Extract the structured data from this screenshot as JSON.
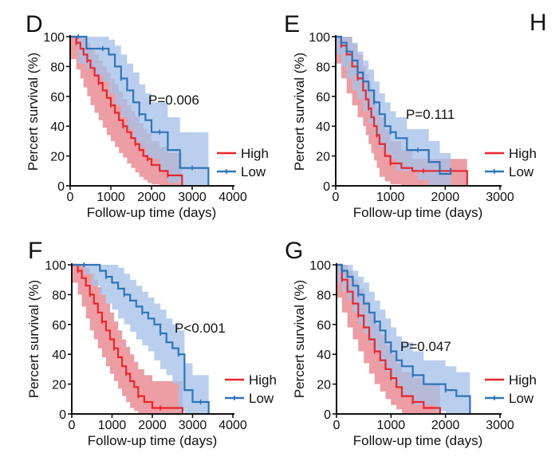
{
  "figure_letters": [
    "H"
  ],
  "chart_data": [
    {
      "type": "line",
      "panel": "D",
      "xlabel": "Follow-up time (days)",
      "ylabel": "Percert survival (%)",
      "xlim": [
        0,
        4000
      ],
      "ylim": [
        0,
        100
      ],
      "xticks": [
        "0",
        "1000",
        "2000",
        "3000",
        "4000"
      ],
      "yticks": [
        "0",
        "20",
        "40",
        "60",
        "80",
        "100"
      ],
      "annotation": "P=0.006",
      "legend_position": "right",
      "series": [
        {
          "name": "High",
          "color": "#e8262b",
          "band_color": "#e8838a",
          "x": [
            0,
            150,
            250,
            330,
            420,
            500,
            600,
            700,
            800,
            900,
            1000,
            1100,
            1200,
            1300,
            1400,
            1500,
            1600,
            1700,
            1800,
            1900,
            2000,
            2200,
            2400,
            2600,
            2750
          ],
          "y": [
            100,
            96,
            92,
            88,
            84,
            79,
            74,
            69,
            64,
            59,
            54,
            49,
            44,
            40,
            36,
            32,
            28,
            24,
            20,
            18,
            14,
            10,
            7,
            7,
            0
          ],
          "lower": [
            100,
            85,
            78,
            72,
            66,
            60,
            54,
            49,
            44,
            39,
            34,
            30,
            26,
            22,
            19,
            15,
            12,
            9,
            6,
            4,
            2,
            1,
            0,
            0,
            0
          ],
          "upper": [
            100,
            100,
            100,
            99,
            96,
            92,
            88,
            84,
            80,
            76,
            72,
            68,
            63,
            58,
            54,
            50,
            46,
            42,
            38,
            35,
            30,
            26,
            22,
            22,
            22
          ]
        },
        {
          "name": "Low",
          "color": "#2d74b8",
          "band_color": "#a6c1e8",
          "x": [
            0,
            200,
            400,
            600,
            800,
            950,
            1100,
            1250,
            1400,
            1550,
            1700,
            1850,
            2000,
            2200,
            2400,
            2700,
            3000,
            3400
          ],
          "y": [
            100,
            100,
            92,
            92,
            92,
            88,
            80,
            72,
            64,
            56,
            48,
            44,
            36,
            36,
            24,
            12,
            12,
            0
          ],
          "lower": [
            100,
            100,
            82,
            78,
            74,
            70,
            62,
            54,
            46,
            38,
            30,
            26,
            20,
            18,
            10,
            2,
            0,
            0
          ],
          "upper": [
            100,
            100,
            100,
            100,
            100,
            98,
            94,
            88,
            82,
            76,
            68,
            62,
            56,
            56,
            46,
            36,
            36,
            36
          ]
        }
      ]
    },
    {
      "type": "line",
      "panel": "E",
      "xlabel": "Follow-up time (days)",
      "ylabel": "Percert survival (%)",
      "xlim": [
        0,
        3000
      ],
      "ylim": [
        0,
        100
      ],
      "xticks": [
        "0",
        "1000",
        "2000",
        "3000"
      ],
      "yticks": [
        "0",
        "20",
        "40",
        "60",
        "80",
        "100"
      ],
      "annotation": "P=0.111",
      "legend_position": "right",
      "series": [
        {
          "name": "High",
          "color": "#e8262b",
          "band_color": "#e8838a",
          "x": [
            0,
            100,
            200,
            300,
            400,
            500,
            550,
            600,
            650,
            700,
            750,
            800,
            900,
            1000,
            1200,
            1400,
            1600,
            2000,
            2400
          ],
          "y": [
            100,
            94,
            88,
            80,
            72,
            64,
            58,
            52,
            46,
            40,
            34,
            28,
            20,
            15,
            12,
            10,
            10,
            10,
            0
          ],
          "lower": [
            100,
            82,
            72,
            62,
            54,
            46,
            40,
            34,
            28,
            22,
            17,
            12,
            6,
            3,
            1,
            0,
            0,
            0,
            0
          ],
          "upper": [
            100,
            100,
            100,
            95,
            88,
            80,
            75,
            70,
            64,
            58,
            52,
            46,
            38,
            30,
            24,
            18,
            18,
            18,
            18
          ]
        },
        {
          "name": "Low",
          "color": "#2d74b8",
          "band_color": "#a6c1e8",
          "x": [
            0,
            100,
            200,
            300,
            400,
            500,
            600,
            700,
            800,
            900,
            1000,
            1100,
            1300,
            1500,
            1700,
            1900,
            2100
          ],
          "y": [
            100,
            96,
            90,
            84,
            76,
            70,
            64,
            56,
            48,
            40,
            36,
            32,
            24,
            24,
            16,
            8,
            12
          ],
          "lower": [
            100,
            88,
            80,
            72,
            64,
            58,
            50,
            42,
            34,
            26,
            22,
            18,
            10,
            10,
            4,
            0,
            0
          ],
          "upper": [
            100,
            100,
            100,
            96,
            90,
            84,
            78,
            70,
            62,
            56,
            50,
            46,
            38,
            38,
            30,
            22,
            22
          ]
        }
      ]
    },
    {
      "type": "line",
      "panel": "F",
      "xlabel": "Follow-up time (days)",
      "ylabel": "Percert survival (%)",
      "xlim": [
        0,
        4000
      ],
      "ylim": [
        0,
        100
      ],
      "xticks": [
        "0",
        "1000",
        "2000",
        "3000",
        "4000"
      ],
      "yticks": [
        "0",
        "20",
        "40",
        "60",
        "80",
        "100"
      ],
      "annotation": "P<0.001",
      "legend_position": "right",
      "series": [
        {
          "name": "High",
          "color": "#e8262b",
          "band_color": "#e8838a",
          "x": [
            0,
            150,
            250,
            350,
            450,
            550,
            650,
            750,
            850,
            950,
            1050,
            1150,
            1250,
            1350,
            1450,
            1550,
            1650,
            1800,
            2000,
            2200,
            2500,
            2700,
            2750
          ],
          "y": [
            100,
            96,
            91,
            86,
            80,
            74,
            68,
            62,
            56,
            50,
            44,
            38,
            32,
            27,
            22,
            18,
            12,
            8,
            4,
            4,
            4,
            4,
            0
          ],
          "lower": [
            100,
            88,
            80,
            72,
            64,
            56,
            50,
            44,
            38,
            32,
            27,
            22,
            17,
            12,
            8,
            4,
            2,
            0,
            0,
            0,
            0,
            0,
            0
          ],
          "upper": [
            100,
            100,
            100,
            98,
            94,
            90,
            85,
            80,
            74,
            68,
            62,
            56,
            50,
            45,
            40,
            35,
            30,
            26,
            22,
            22,
            22,
            22,
            22
          ]
        },
        {
          "name": "Low",
          "color": "#2d74b8",
          "band_color": "#a6c1e8",
          "x": [
            0,
            300,
            500,
            700,
            850,
            1000,
            1150,
            1300,
            1450,
            1600,
            1750,
            1900,
            2050,
            2200,
            2350,
            2500,
            2650,
            2800,
            3000,
            3200,
            3400
          ],
          "y": [
            100,
            100,
            100,
            96,
            92,
            88,
            84,
            80,
            76,
            72,
            68,
            64,
            60,
            54,
            48,
            44,
            40,
            16,
            8,
            8,
            0
          ],
          "lower": [
            100,
            100,
            94,
            86,
            80,
            74,
            70,
            64,
            60,
            55,
            50,
            46,
            42,
            36,
            30,
            26,
            20,
            2,
            0,
            0,
            0
          ],
          "upper": [
            100,
            100,
            100,
            100,
            100,
            100,
            98,
            94,
            90,
            86,
            82,
            78,
            74,
            70,
            64,
            60,
            56,
            34,
            26,
            26,
            26
          ]
        }
      ]
    },
    {
      "type": "line",
      "panel": "G",
      "xlabel": "Follow-up time (days)",
      "ylabel": "Percert survival (%)",
      "xlim": [
        0,
        3000
      ],
      "ylim": [
        0,
        100
      ],
      "xticks": [
        "0",
        "1000",
        "2000",
        "3000"
      ],
      "yticks": [
        "0",
        "20",
        "40",
        "60",
        "80",
        "100"
      ],
      "annotation": "P=0.047",
      "legend_position": "right",
      "series": [
        {
          "name": "High",
          "color": "#e8262b",
          "band_color": "#e8838a",
          "x": [
            0,
            100,
            200,
            300,
            400,
            500,
            600,
            700,
            800,
            900,
            1000,
            1100,
            1200,
            1400,
            1600,
            1800,
            1900
          ],
          "y": [
            100,
            90,
            82,
            74,
            66,
            58,
            50,
            42,
            36,
            30,
            24,
            18,
            12,
            8,
            4,
            4,
            0
          ],
          "lower": [
            100,
            78,
            68,
            58,
            50,
            42,
            34,
            27,
            20,
            15,
            10,
            6,
            3,
            0,
            0,
            0,
            0
          ],
          "upper": [
            100,
            100,
            96,
            90,
            84,
            76,
            68,
            60,
            53,
            46,
            40,
            34,
            28,
            24,
            20,
            20,
            20
          ]
        },
        {
          "name": "Low",
          "color": "#2d74b8",
          "band_color": "#a6c1e8",
          "x": [
            0,
            100,
            200,
            300,
            400,
            500,
            600,
            700,
            800,
            900,
            1000,
            1100,
            1200,
            1400,
            1600,
            1800,
            2000,
            2200,
            2450
          ],
          "y": [
            100,
            96,
            92,
            86,
            80,
            74,
            68,
            62,
            56,
            48,
            42,
            36,
            32,
            26,
            20,
            20,
            16,
            12,
            0
          ],
          "lower": [
            100,
            88,
            82,
            76,
            68,
            60,
            54,
            48,
            42,
            34,
            28,
            22,
            18,
            12,
            6,
            6,
            2,
            0,
            0
          ],
          "upper": [
            100,
            100,
            100,
            96,
            92,
            88,
            82,
            76,
            70,
            64,
            58,
            52,
            48,
            42,
            36,
            36,
            32,
            28,
            28
          ]
        }
      ]
    }
  ]
}
